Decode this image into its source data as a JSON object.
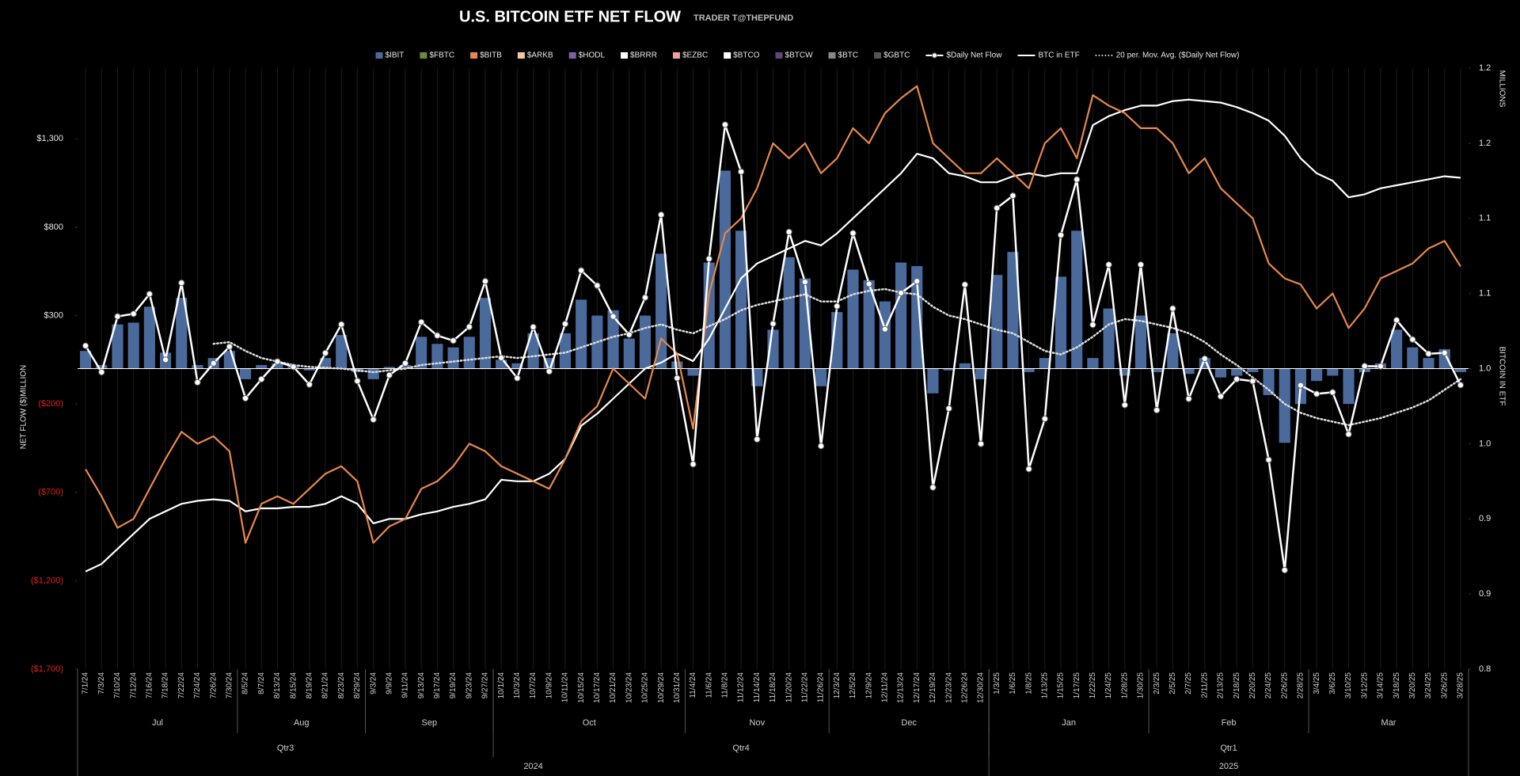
{
  "chart_data": {
    "type": "combo",
    "title": "U.S. BITCOIN ETF NET FLOW",
    "subtitle": "TRADER T@THEPFUND",
    "y_axis_label": "NET FLOW ($)MILLION",
    "y2_axis_label": "BITCOIN IN ETF",
    "y2_unit_label": "MILLIONS",
    "categories": [
      "7/1/24",
      "7/3/24",
      "7/10/24",
      "7/12/24",
      "7/16/24",
      "7/18/24",
      "7/22/24",
      "7/24/24",
      "7/26/24",
      "7/30/24",
      "8/5/24",
      "8/7/24",
      "8/13/24",
      "8/15/24",
      "8/19/24",
      "8/21/24",
      "8/23/24",
      "8/29/24",
      "9/3/24",
      "9/9/24",
      "9/11/24",
      "9/13/24",
      "9/17/24",
      "9/19/24",
      "9/23/24",
      "9/27/24",
      "10/1/24",
      "10/3/24",
      "10/7/24",
      "10/9/24",
      "10/11/24",
      "10/15/24",
      "10/17/24",
      "10/21/24",
      "10/23/24",
      "10/25/24",
      "10/29/24",
      "10/31/24",
      "11/4/24",
      "11/6/24",
      "11/8/24",
      "11/12/24",
      "11/14/24",
      "11/18/24",
      "11/20/24",
      "11/22/24",
      "11/26/24",
      "12/3/24",
      "12/5/24",
      "12/9/24",
      "12/11/24",
      "12/13/24",
      "12/17/24",
      "12/19/24",
      "12/23/24",
      "12/26/24",
      "12/30/24",
      "1/3/25",
      "1/6/25",
      "1/8/25",
      "1/13/25",
      "1/15/25",
      "1/17/25",
      "1/22/25",
      "1/24/25",
      "1/28/25",
      "1/30/25",
      "2/3/25",
      "2/5/25",
      "2/7/25",
      "2/11/25",
      "2/13/25",
      "2/18/25",
      "2/20/25",
      "2/24/25",
      "2/26/25",
      "2/28/25",
      "3/4/25",
      "3/6/25",
      "3/10/25",
      "3/12/25",
      "3/14/25",
      "3/18/25",
      "3/20/25",
      "3/24/25",
      "3/26/25",
      "3/28/25"
    ],
    "months": [
      "Jul",
      "Aug",
      "Sep",
      "Oct",
      "Nov",
      "Dec",
      "Jan",
      "Feb",
      "Mar"
    ],
    "quarters": [
      "Qtr3",
      "Qtr4",
      "Qtr1"
    ],
    "years": [
      "2024",
      "2025"
    ],
    "ylim": [
      -1700,
      1700
    ],
    "yticks": [
      {
        "value": 1300,
        "label": "$1,300"
      },
      {
        "value": 800,
        "label": "$800"
      },
      {
        "value": 300,
        "label": "$300"
      },
      {
        "value": -200,
        "label": "($200)"
      },
      {
        "value": -700,
        "label": "($700)"
      },
      {
        "value": -1200,
        "label": "($1,200)"
      },
      {
        "value": -1700,
        "label": "($1,700)"
      }
    ],
    "y2lim": [
      0.8,
      1.2
    ],
    "y2ticks": [
      {
        "value": 0.8,
        "label": "0.8"
      },
      {
        "value": 0.85,
        "label": "0.9"
      },
      {
        "value": 0.9,
        "label": "0.9"
      },
      {
        "value": 0.95,
        "label": "1.0"
      },
      {
        "value": 1.0,
        "label": "1.0"
      },
      {
        "value": 1.05,
        "label": "1.1"
      },
      {
        "value": 1.1,
        "label": "1.1"
      },
      {
        "value": 1.15,
        "label": "1.2"
      },
      {
        "value": 1.2,
        "label": "1.2"
      }
    ],
    "series": [
      {
        "name": "$IBIT",
        "color": "#4a6a9c",
        "type": "bar",
        "values": [
          100,
          20,
          250,
          260,
          350,
          90,
          400,
          20,
          60,
          100,
          -60,
          20,
          30,
          20,
          -10,
          60,
          190,
          -20,
          -60,
          10,
          20,
          180,
          140,
          120,
          180,
          400,
          50,
          30,
          200,
          60,
          200,
          390,
          300,
          330,
          170,
          300,
          650,
          40,
          -40,
          600,
          1120,
          780,
          -100,
          220,
          630,
          510,
          -100,
          320,
          560,
          500,
          380,
          600,
          580,
          -140,
          -10,
          30,
          -60,
          530,
          660,
          -20,
          60,
          520,
          780,
          60,
          340,
          -40,
          300,
          -20,
          200,
          -30,
          60,
          -50,
          -40,
          -20,
          -150,
          -420,
          -200,
          -70,
          -40,
          -200,
          -20,
          30,
          220,
          120,
          60,
          110,
          -20
        ]
      },
      {
        "name": "$FBTC",
        "color": "#6b8a3a"
      },
      {
        "name": "$BITB",
        "color": "#e8884a"
      },
      {
        "name": "$ARKB",
        "color": "#f5c6a0"
      },
      {
        "name": "$HODL",
        "color": "#7b62a8"
      },
      {
        "name": "$BRRR",
        "color": "#ffffff"
      },
      {
        "name": "$EZBC",
        "color": "#e8a4a0"
      },
      {
        "name": "$BTCO",
        "color": "#ffffff"
      },
      {
        "name": "$BTCW",
        "color": "#5a4a7a"
      },
      {
        "name": "$BTC",
        "color": "#888888"
      },
      {
        "name": "$GBTC",
        "color": "#555555"
      },
      {
        "name": "$Daily Net Flow",
        "color": "#ffffff",
        "type": "line",
        "markers": true,
        "values": [
          129,
          -20,
          295,
          310,
          422,
          50,
          485,
          -78,
          30,
          124,
          -168,
          -60,
          40,
          10,
          -90,
          88,
          250,
          -70,
          -288,
          -37,
          30,
          263,
          187,
          158,
          236,
          494,
          61,
          -54,
          235,
          -16,
          253,
          555,
          470,
          295,
          192,
          402,
          870,
          -54,
          -541,
          621,
          1380,
          1114,
          -400,
          254,
          773,
          490,
          -438,
          353,
          766,
          479,
          223,
          428,
          494,
          -672,
          -226,
          475,
          -426,
          908,
          978,
          -568,
          -284,
          755,
          1070,
          248,
          588,
          -206,
          588,
          -235,
          340,
          -171,
          56,
          -157,
          -60,
          -71,
          -516,
          -1140,
          -95,
          -143,
          -134,
          -371,
          14,
          13,
          274,
          165,
          84,
          89,
          -93
        ]
      },
      {
        "name": "BTC in ETF",
        "color": "#ffffff",
        "type": "line",
        "axis": "y2",
        "values": [
          0.865,
          0.87,
          0.88,
          0.89,
          0.9,
          0.905,
          0.91,
          0.912,
          0.913,
          0.912,
          0.905,
          0.907,
          0.907,
          0.908,
          0.908,
          0.91,
          0.915,
          0.91,
          0.897,
          0.9,
          0.9,
          0.903,
          0.905,
          0.908,
          0.91,
          0.913,
          0.926,
          0.925,
          0.925,
          0.93,
          0.94,
          0.962,
          0.97,
          0.98,
          0.99,
          1.0,
          1.004,
          1.01,
          1.005,
          1.02,
          1.04,
          1.06,
          1.07,
          1.075,
          1.08,
          1.085,
          1.082,
          1.09,
          1.1,
          1.11,
          1.12,
          1.13,
          1.143,
          1.14,
          1.13,
          1.128,
          1.124,
          1.124,
          1.128,
          1.13,
          1.128,
          1.13,
          1.13,
          1.162,
          1.168,
          1.172,
          1.175,
          1.175,
          1.178,
          1.179,
          1.178,
          1.177,
          1.174,
          1.17,
          1.165,
          1.155,
          1.14,
          1.13,
          1.125,
          1.114,
          1.116,
          1.12,
          1.122,
          1.124,
          1.126,
          1.128,
          1.127
        ]
      },
      {
        "name": "20 per. Mov. Avg. ($Daily Net Flow)",
        "color": "#dddddd",
        "type": "line",
        "line_style": "dotted",
        "axis": "y",
        "values": [
          null,
          null,
          null,
          null,
          null,
          null,
          null,
          null,
          140,
          150,
          100,
          60,
          40,
          20,
          10,
          5,
          0,
          -10,
          -20,
          -10,
          0,
          20,
          30,
          40,
          50,
          60,
          70,
          60,
          70,
          80,
          90,
          120,
          150,
          180,
          200,
          230,
          250,
          220,
          200,
          240,
          280,
          330,
          360,
          380,
          400,
          420,
          380,
          380,
          420,
          440,
          450,
          430,
          420,
          350,
          300,
          280,
          250,
          220,
          200,
          150,
          100,
          80,
          120,
          180,
          250,
          280,
          270,
          250,
          230,
          200,
          150,
          80,
          20,
          -50,
          -120,
          -200,
          -250,
          -280,
          -300,
          -320,
          -300,
          -280,
          -250,
          -220,
          -180,
          -120,
          -60
        ]
      },
      {
        "color": "#e8884a",
        "type": "line",
        "axis": "y2",
        "values": [
          0.933,
          0.915,
          0.894,
          0.9,
          0.92,
          0.94,
          0.958,
          0.95,
          0.955,
          0.945,
          0.884,
          0.91,
          0.915,
          0.91,
          0.92,
          0.93,
          0.935,
          0.925,
          0.884,
          0.895,
          0.9,
          0.92,
          0.925,
          0.935,
          0.95,
          0.945,
          0.935,
          0.93,
          0.925,
          0.92,
          0.94,
          0.965,
          0.975,
          1.0,
          0.99,
          0.98,
          1.02,
          1.01,
          0.96,
          1.05,
          1.09,
          1.1,
          1.12,
          1.15,
          1.14,
          1.15,
          1.13,
          1.14,
          1.16,
          1.15,
          1.17,
          1.18,
          1.188,
          1.15,
          1.14,
          1.13,
          1.13,
          1.14,
          1.13,
          1.12,
          1.15,
          1.16,
          1.14,
          1.182,
          1.175,
          1.17,
          1.16,
          1.16,
          1.15,
          1.13,
          1.14,
          1.12,
          1.11,
          1.1,
          1.07,
          1.06,
          1.056,
          1.04,
          1.05,
          1.027,
          1.04,
          1.06,
          1.065,
          1.07,
          1.08,
          1.085,
          1.068
        ]
      }
    ]
  }
}
